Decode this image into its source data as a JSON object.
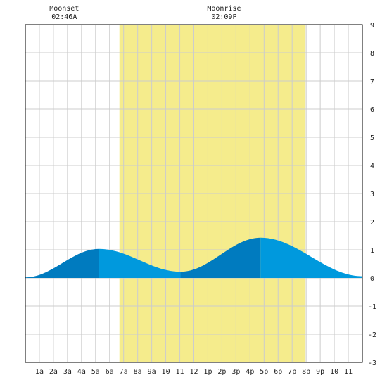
{
  "chart_data": {
    "type": "area",
    "title": "",
    "xlabel": "",
    "ylabel": "",
    "x_unit": "hours since midnight",
    "xlim": [
      0,
      24
    ],
    "ylim": [
      -3,
      9
    ],
    "grid": true,
    "y_ticks": [
      -3,
      -2,
      -1,
      0,
      1,
      2,
      3,
      4,
      5,
      6,
      7,
      8,
      9
    ],
    "x_ticks": [
      {
        "x": 1,
        "label": "1a"
      },
      {
        "x": 2,
        "label": "2a"
      },
      {
        "x": 3,
        "label": "3a"
      },
      {
        "x": 4,
        "label": "4a"
      },
      {
        "x": 5,
        "label": "5a"
      },
      {
        "x": 6,
        "label": "6a"
      },
      {
        "x": 7,
        "label": "7a"
      },
      {
        "x": 8,
        "label": "8a"
      },
      {
        "x": 9,
        "label": "9a"
      },
      {
        "x": 10,
        "label": "10"
      },
      {
        "x": 11,
        "label": "11"
      },
      {
        "x": 12,
        "label": "12"
      },
      {
        "x": 13,
        "label": "1p"
      },
      {
        "x": 14,
        "label": "2p"
      },
      {
        "x": 15,
        "label": "3p"
      },
      {
        "x": 16,
        "label": "4p"
      },
      {
        "x": 17,
        "label": "5p"
      },
      {
        "x": 18,
        "label": "6p"
      },
      {
        "x": 19,
        "label": "7p"
      },
      {
        "x": 20,
        "label": "8p"
      },
      {
        "x": 21,
        "label": "9p"
      },
      {
        "x": 22,
        "label": "10"
      },
      {
        "x": 23,
        "label": "11"
      }
    ],
    "daylight": {
      "start": 6.7,
      "end": 19.95
    },
    "tide_extremes": [
      {
        "type": "high",
        "x": 5.25,
        "y": 1.03
      },
      {
        "type": "low",
        "x": 11.05,
        "y": 0.22
      },
      {
        "type": "high",
        "x": 16.75,
        "y": 1.43
      }
    ],
    "tide_start": {
      "x": 0,
      "y": 0.02
    },
    "tide_end": {
      "x": 24,
      "y": 0.06
    },
    "moon_events": [
      {
        "label": "Moonset",
        "time": "02:46A",
        "x": 2.77
      },
      {
        "label": "Moonrise",
        "time": "02:09P",
        "x": 14.15
      }
    ],
    "colors": {
      "daylight": "#f5ec8c",
      "tide_light": "#0099dd",
      "tide_dark": "#007bbf",
      "grid": "#cccccc",
      "border": "#000000"
    }
  }
}
